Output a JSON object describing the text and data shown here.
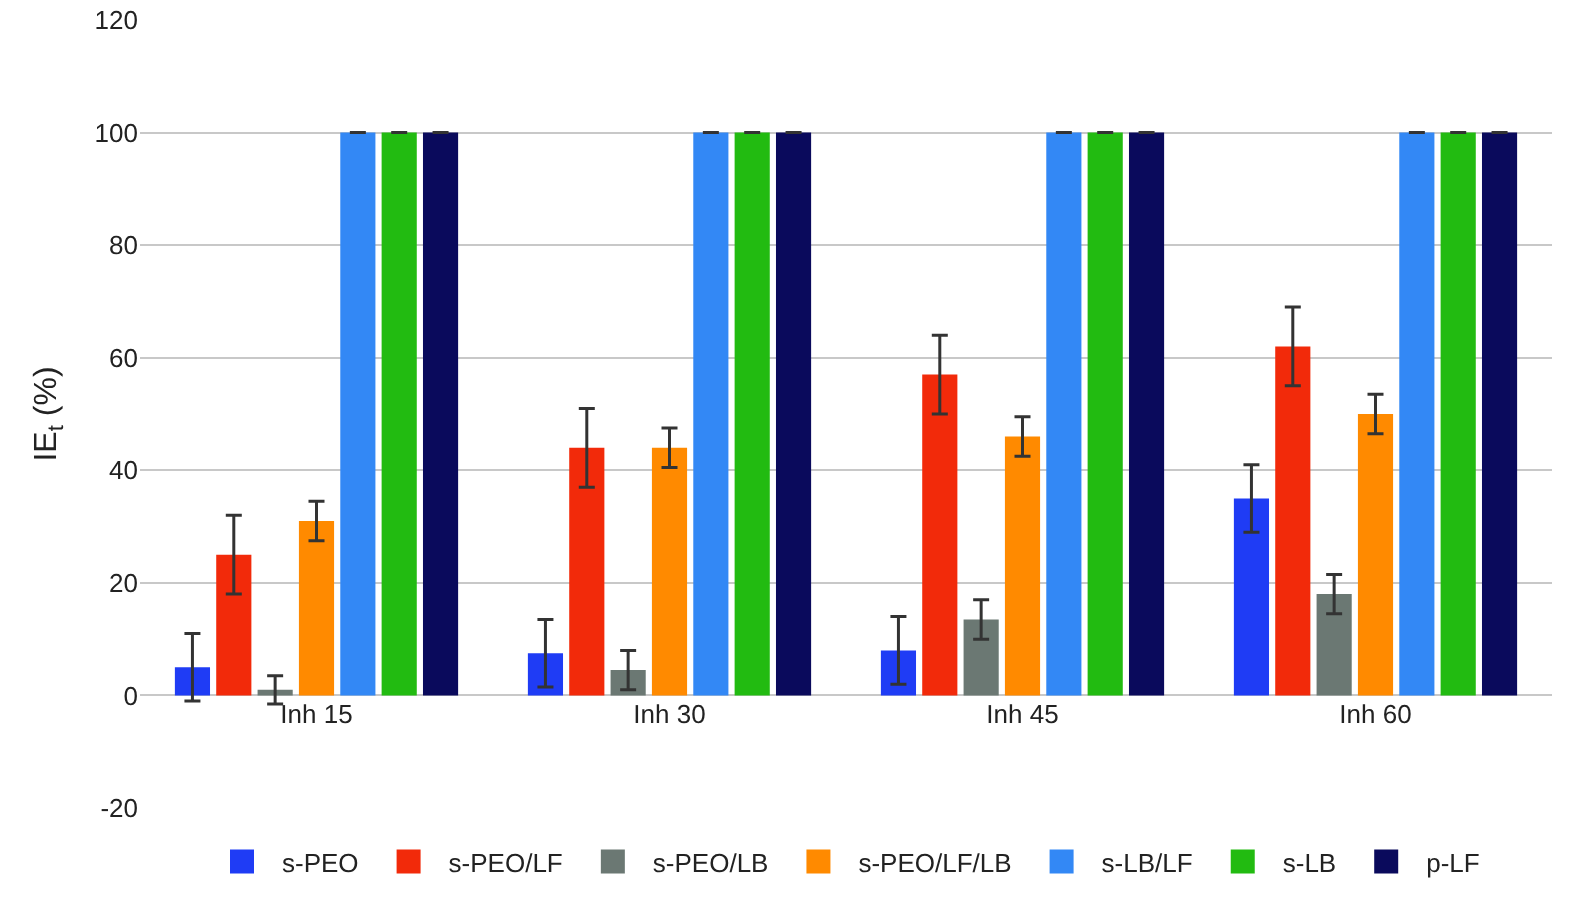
{
  "chart_data": {
    "type": "bar",
    "ylabel": "IE$_{t}$ (%)",
    "categories": [
      "Inh 15",
      "Inh 30",
      "Inh 45",
      "Inh 60"
    ],
    "ylim": [
      -20,
      120
    ],
    "yticks": [
      -20,
      0,
      20,
      40,
      60,
      80,
      100,
      120
    ],
    "grid": "y",
    "legend": "bottom",
    "series": [
      {
        "name": "s-PEO",
        "color": "#1f3cf5",
        "values": [
          5,
          7.5,
          8,
          35
        ],
        "errors": [
          6,
          6,
          6,
          6
        ]
      },
      {
        "name": "s-PEO/LF",
        "color": "#f22a0a",
        "values": [
          25,
          44,
          57,
          62
        ],
        "errors": [
          7,
          7,
          7,
          7
        ]
      },
      {
        "name": "s-PEO/LB",
        "color": "#6b7873",
        "values": [
          1,
          4.5,
          13.5,
          18
        ],
        "errors": [
          2.5,
          3.5,
          3.5,
          3.5
        ]
      },
      {
        "name": "s-PEO/LF/LB",
        "color": "#ff8a00",
        "values": [
          31,
          44,
          46,
          50
        ],
        "errors": [
          3.5,
          3.5,
          3.5,
          3.5
        ]
      },
      {
        "name": "s-LB/LF",
        "color": "#3388f5",
        "values": [
          100,
          100,
          100,
          100
        ],
        "errors": [
          0,
          0,
          0,
          0
        ]
      },
      {
        "name": "s-LB",
        "color": "#22bb11",
        "values": [
          100,
          100,
          100,
          100
        ],
        "errors": [
          0,
          0,
          0,
          0
        ]
      },
      {
        "name": "p-LF",
        "color": "#0a0a5c",
        "values": [
          100,
          100,
          100,
          100
        ],
        "errors": [
          0,
          0,
          0,
          0
        ]
      }
    ]
  }
}
